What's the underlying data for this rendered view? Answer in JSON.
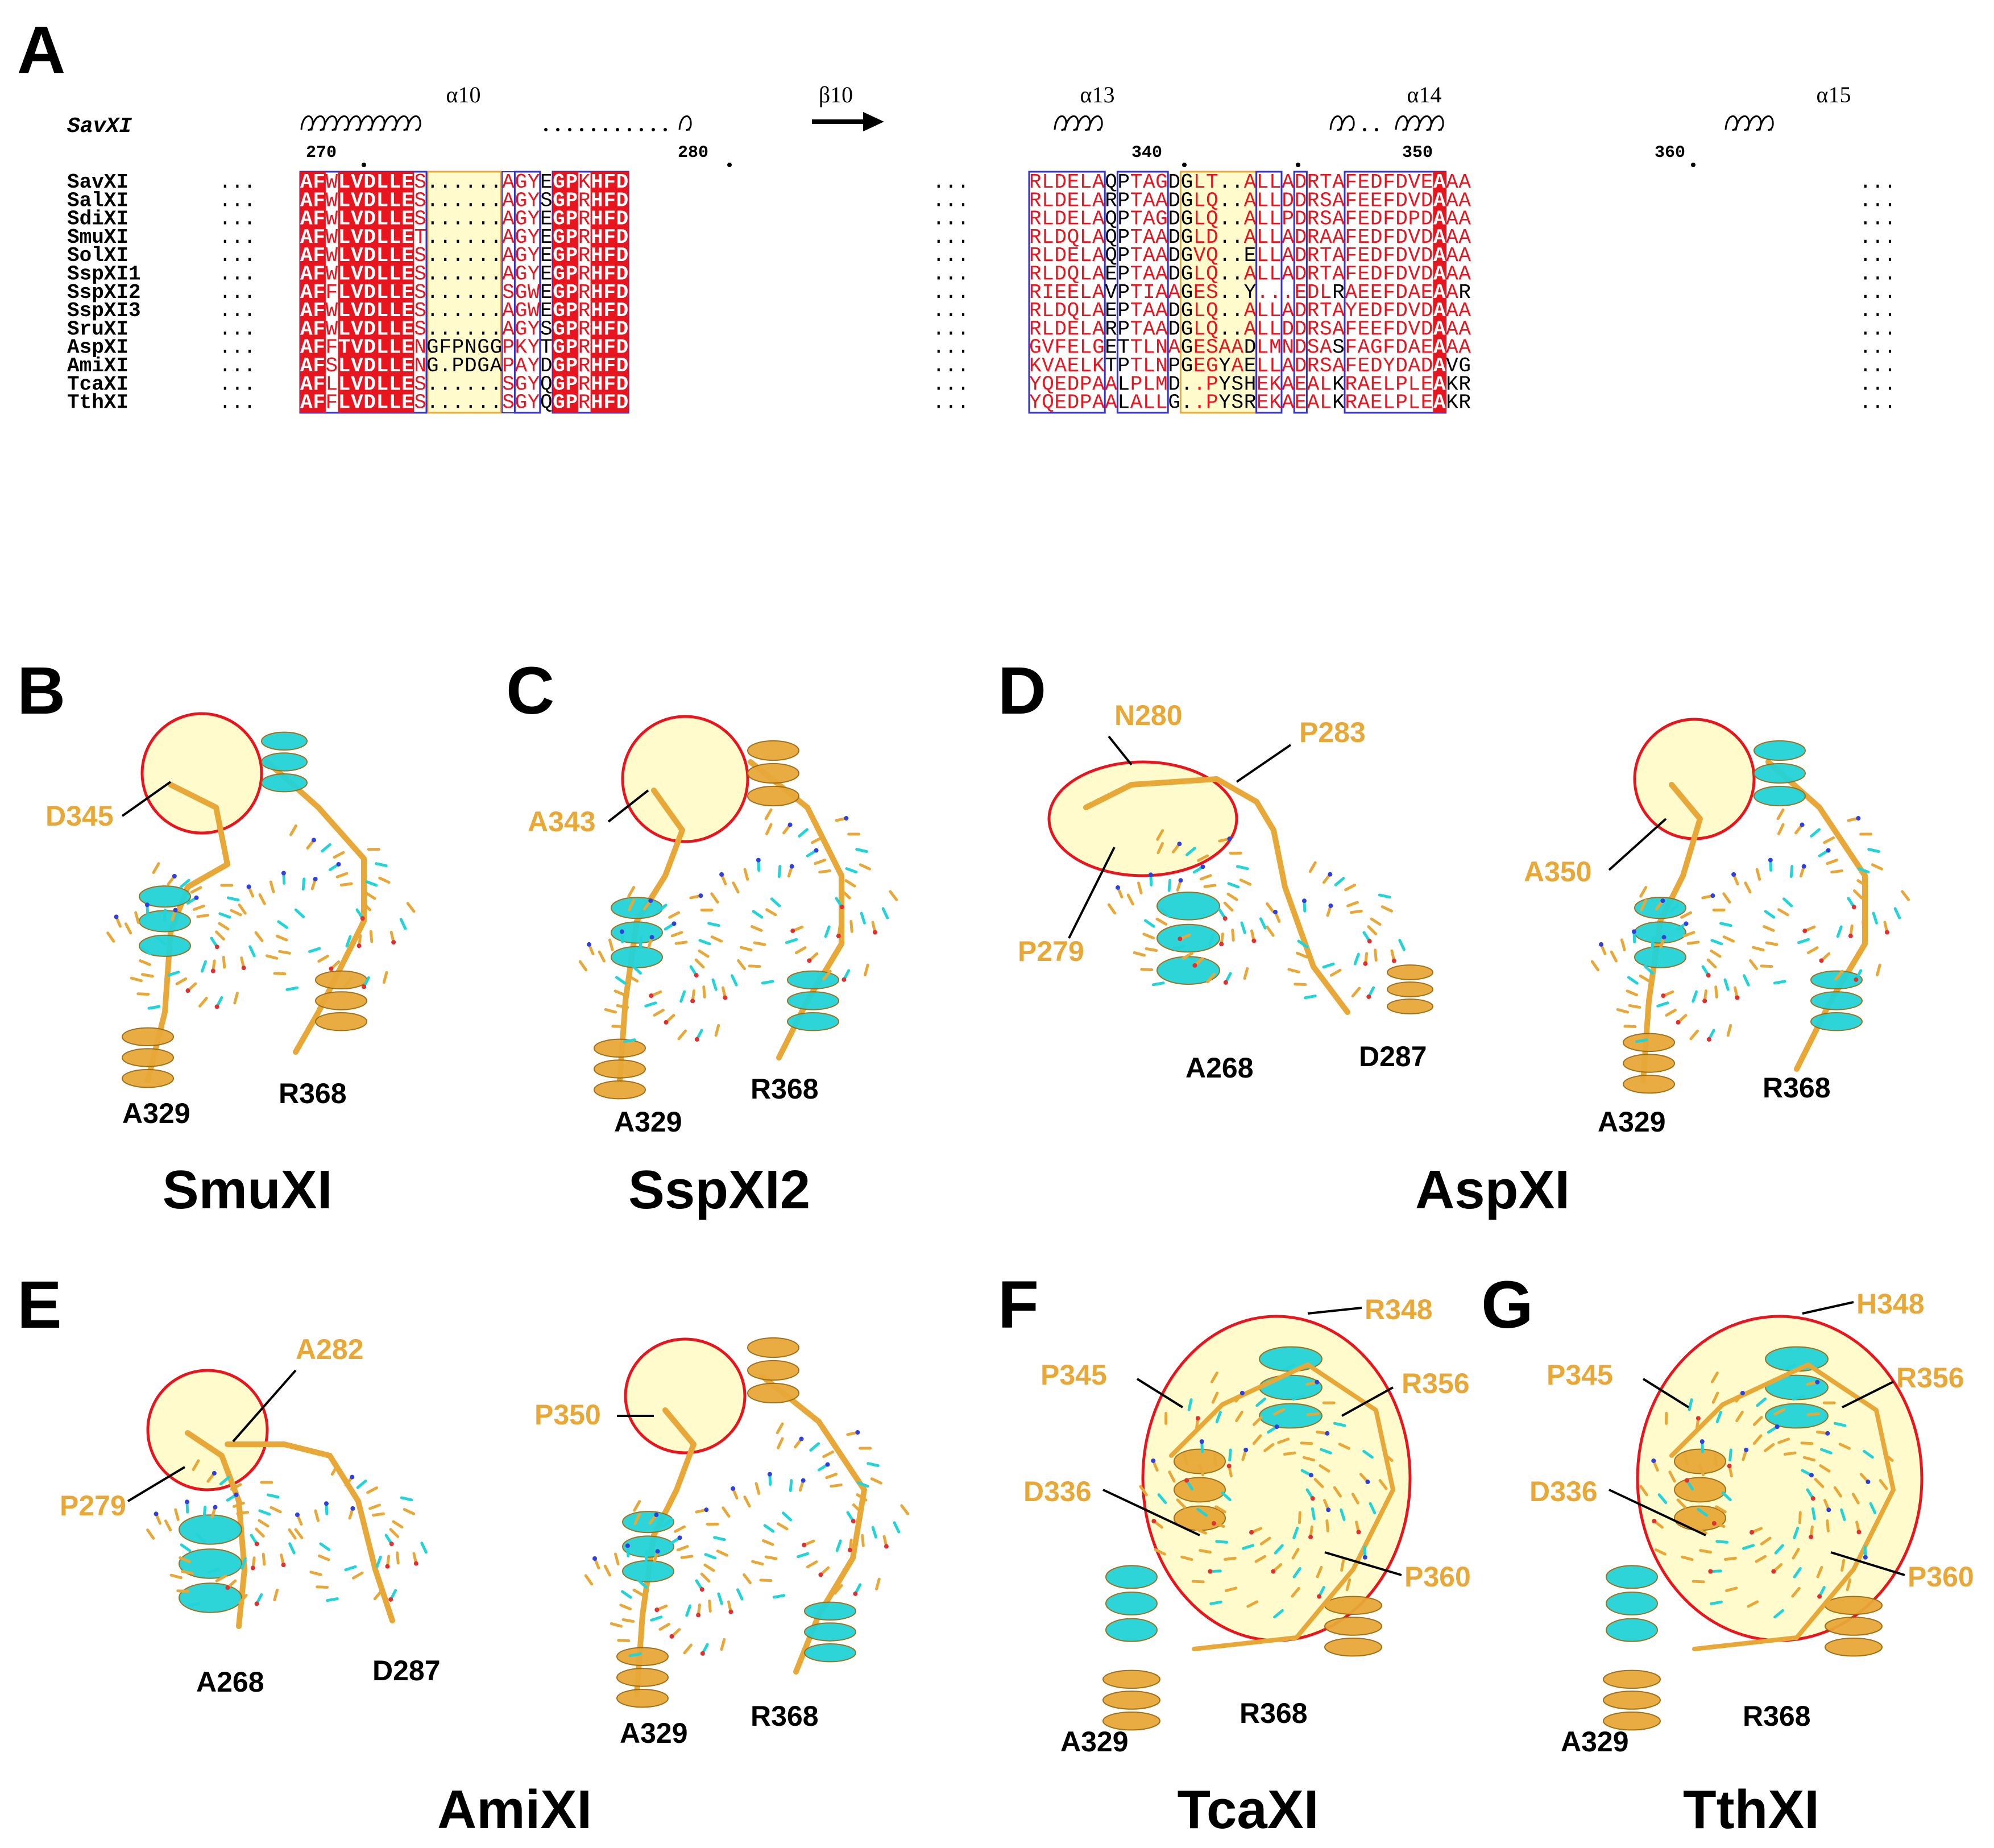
{
  "panel_labels": [
    "A",
    "B",
    "C",
    "D",
    "E",
    "F",
    "G"
  ],
  "alignment": {
    "reference": "SavXI",
    "sec_struct_labels": [
      "α10",
      "β10",
      "α13",
      "α14",
      "α15"
    ],
    "ticks": [
      "270",
      "280",
      "340",
      "350",
      "360"
    ],
    "ellipsis": "...",
    "rows": [
      {
        "name": "SavXI",
        "seg1": "AFWLVDLLES",
        "seg2": "......",
        "seg3": "AGYEGPKHFD",
        "seg4": "RLDELAQPTAGDGLT..ALLADRTAFEDFDVEAAA"
      },
      {
        "name": "SalXI",
        "seg1": "AFWLVDLLES",
        "seg2": "......",
        "seg3": "AGYSGPRHFD",
        "seg4": "RLDELARPTAADGLQ..ALLDDRSAFEEFDVDAAA"
      },
      {
        "name": "SdiXI",
        "seg1": "AFWLVDLLES",
        "seg2": "......",
        "seg3": "AGYEGPRHFD",
        "seg4": "RLDELAQPTAGDGLQ..ALLPDRSAFEDFDPDAAA"
      },
      {
        "name": "SmuXI",
        "seg1": "AFWLVDLLET",
        "seg2": "......",
        "seg3": "AGYEGPRHFD",
        "seg4": "RLDQLAQPTAADGLD..ALLADRAAFEDFDVDAAA"
      },
      {
        "name": "SolXI",
        "seg1": "AFWLVDLLES",
        "seg2": "......",
        "seg3": "AGYEGPRHFD",
        "seg4": "RLDELAQPTAADGVQ..ELLADRTAFEDFDVDAAA"
      },
      {
        "name": "SspXI1",
        "seg1": "AFWLVDLLES",
        "seg2": "......",
        "seg3": "AGYEGPRHFD",
        "seg4": "RLDQLAEPTAADGLQ..ALLADRTAFEDFDVDAAA"
      },
      {
        "name": "SspXI2",
        "seg1": "AFFLVDLLES",
        "seg2": "......",
        "seg3": "SGWEGPRHFD",
        "seg4": "RIEELAVPTIAAGES..Y...EDLRAEEFDAEAAR"
      },
      {
        "name": "SspXI3",
        "seg1": "AFWLVDLLES",
        "seg2": "......",
        "seg3": "AGWEGPRHFD",
        "seg4": "RLDQLAEPTAADGLQ..ALLADRTAYEDFDVDAAA"
      },
      {
        "name": "SruXI",
        "seg1": "AFWLVDLLES",
        "seg2": "......",
        "seg3": "AGYSGPRHFD",
        "seg4": "RLDELARPTAADGLQ..ALLDDRSAFEEFDVDAAA"
      },
      {
        "name": "AspXI",
        "seg1": "AFFTVDLLEN",
        "seg2": "GFPNGG",
        "seg3": "PKYTGPRHFD",
        "seg4": "GVFELGETTLNAGESAADLMNDSASFAGFDAEAAA"
      },
      {
        "name": "AmiXI",
        "seg1": "AFSLVDLLEN",
        "seg2": "G.PDGA",
        "seg3": "PAYDGPRHFD",
        "seg4": "KVAELKTPTLNPGEGYAELLADRSAFEDYDADAVG"
      },
      {
        "name": "TcaXI",
        "seg1": "AFLLVDLLES",
        "seg2": "......",
        "seg3": "SGYQGPRHFD",
        "seg4": "YQEDPAALPLMD..PYSHEKAEALKRAELPLEAKR"
      },
      {
        "name": "TthXI",
        "seg1": "AFFLVDLLES",
        "seg2": "......",
        "seg3": "SGYQGPRHFD",
        "seg4": "YQEDPAALALLG..PYSREKAEALKRAELPLEAKR"
      }
    ]
  },
  "panels": {
    "B": {
      "title": "SmuXI",
      "labels_orange": [
        "D345"
      ],
      "labels_black": [
        "A329",
        "R368"
      ]
    },
    "C": {
      "title": "SspXI2",
      "labels_orange": [
        "A343"
      ],
      "labels_black": [
        "A329",
        "R368"
      ]
    },
    "D": {
      "title": "AspXI",
      "labels_orange": [
        "N280",
        "P283",
        "P279",
        "A350"
      ],
      "labels_black": [
        "A268",
        "D287",
        "A329",
        "R368"
      ]
    },
    "E": {
      "title": "AmiXI",
      "labels_orange": [
        "A282",
        "P279",
        "P350"
      ],
      "labels_black": [
        "A268",
        "D287",
        "A329",
        "R368"
      ]
    },
    "F": {
      "title": "TcaXI",
      "labels_orange": [
        "R348",
        "P345",
        "R356",
        "D336",
        "P360"
      ],
      "labels_black": [
        "A329",
        "R368"
      ]
    },
    "G": {
      "title": "TthXI",
      "labels_orange": [
        "H348",
        "P345",
        "R356",
        "D336",
        "P360"
      ],
      "labels_black": [
        "A329",
        "R368"
      ]
    }
  },
  "colors": {
    "red": "#E8141E",
    "blue": "#3333CC",
    "yellow": "#FFFBCC",
    "orange": "#E8A838",
    "cyan": "#22D3D8",
    "circle": "#E8141E"
  }
}
